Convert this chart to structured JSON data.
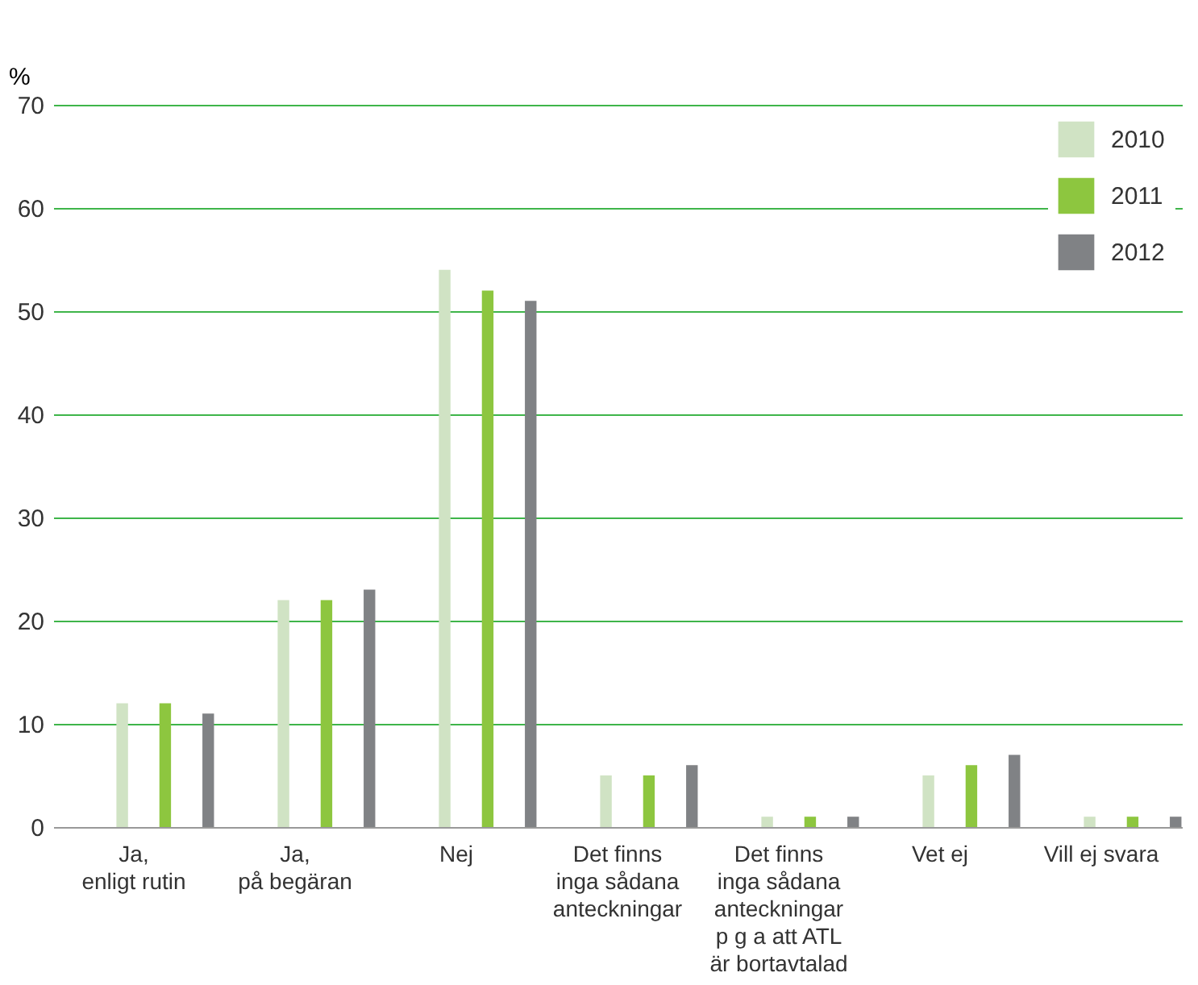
{
  "chart_data": {
    "type": "bar",
    "ylabel": "%",
    "categories": [
      "Ja,\nenligt rutin",
      "Ja,\npå begäran",
      "Nej",
      "Det finns\ninga sådana\nanteckningar",
      "Det finns\ninga sådana\nanteckningar\np g a att ATL\när bortavtalad",
      "Vet ej",
      "Vill ej svara"
    ],
    "series": [
      {
        "name": "2010",
        "color": "#d0e3c4",
        "values": [
          12,
          22,
          54,
          5,
          1,
          5,
          1
        ]
      },
      {
        "name": "2011",
        "color": "#8dc63f",
        "values": [
          12,
          22,
          52,
          5,
          1,
          6,
          1
        ]
      },
      {
        "name": "2012",
        "color": "#808285",
        "values": [
          11,
          23,
          51,
          6,
          1,
          7,
          1
        ]
      }
    ],
    "ylim": [
      0,
      70
    ],
    "yticks": [
      0,
      10,
      20,
      30,
      40,
      50,
      60,
      70
    ],
    "grid": "y",
    "legend": "top right"
  }
}
